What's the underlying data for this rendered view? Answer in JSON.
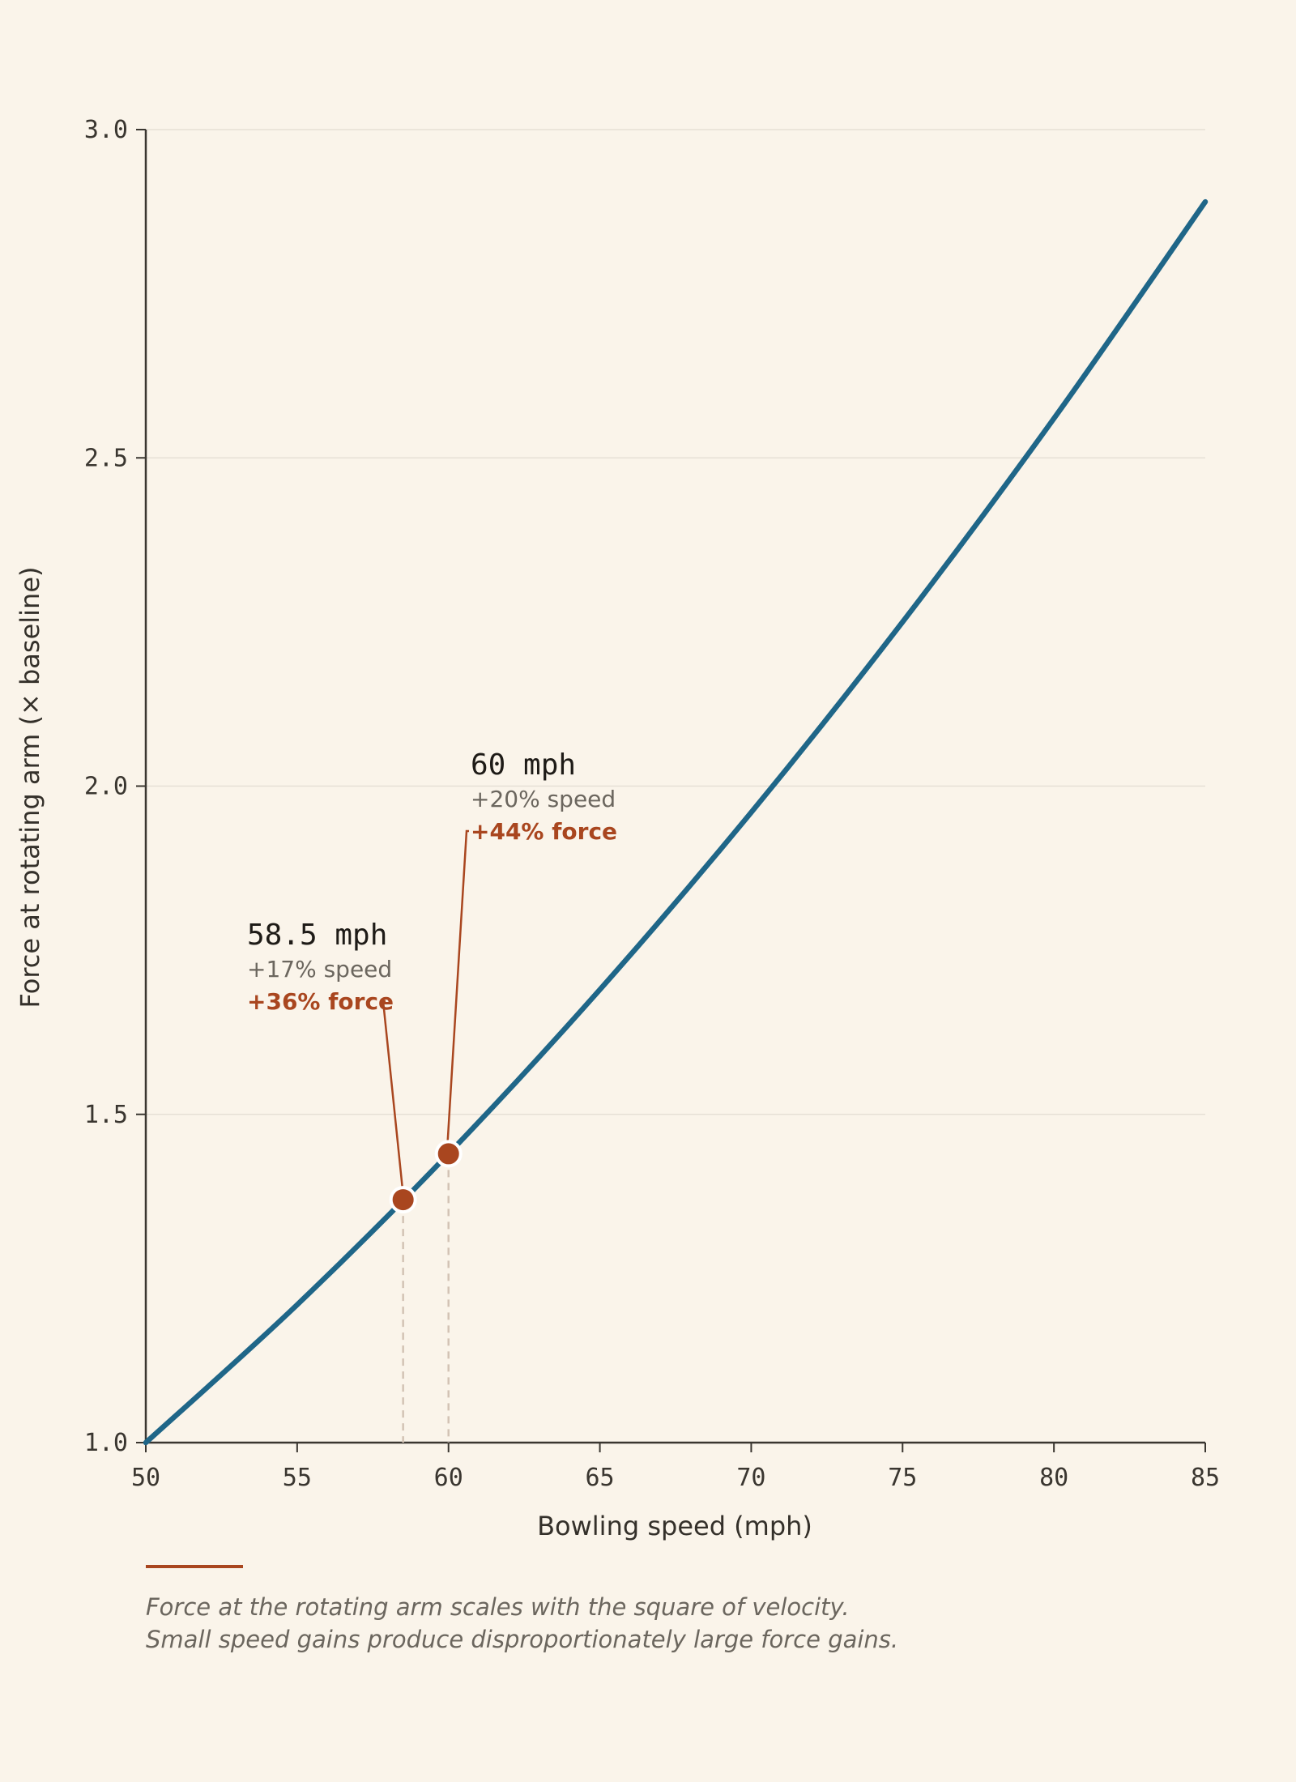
{
  "chart_data": {
    "type": "line",
    "xlabel": "Bowling speed (mph)",
    "ylabel": "Force at rotating arm (× baseline)",
    "xlim": [
      50,
      85
    ],
    "ylim": [
      1.0,
      3.0
    ],
    "x_ticks": [
      "50",
      "55",
      "60",
      "65",
      "70",
      "75",
      "80",
      "85"
    ],
    "y_ticks": [
      "1.0",
      "1.5",
      "2.0",
      "2.5",
      "3.0"
    ],
    "grid": "horizontal",
    "series": [
      {
        "color": "#1f6688",
        "x": [
          50,
          55,
          60,
          65,
          70,
          75,
          80,
          85
        ],
        "y": [
          1.0,
          1.21,
          1.44,
          1.69,
          1.96,
          2.25,
          2.56,
          2.89
        ]
      }
    ],
    "annotations": [
      {
        "x": 58.5,
        "y": 1.37,
        "speed": "58.5 mph",
        "speed_pct": "+17% speed",
        "force_pct": "+36% force"
      },
      {
        "x": 60,
        "y": 1.44,
        "speed": "60 mph",
        "speed_pct": "+20% speed",
        "force_pct": "+44% force"
      }
    ],
    "caption": [
      "Force at the rotating arm scales with the square of velocity.",
      "Small speed gains produce disproportionately large force gains."
    ],
    "colors": {
      "line": "#1f6688",
      "accent": "#a9461f",
      "grid": "#e6e0d5",
      "axis": "#3a3630"
    }
  }
}
